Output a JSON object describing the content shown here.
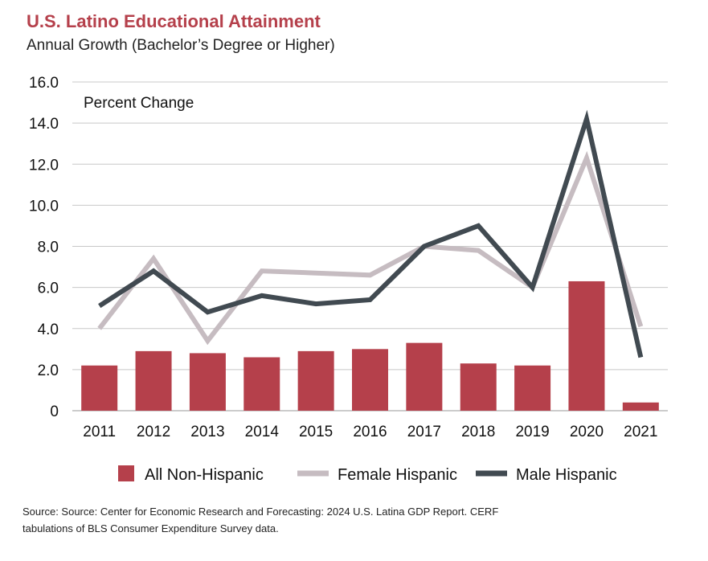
{
  "header": {
    "title": "U.S. Latino Educational Attainment",
    "subtitle": "Annual Growth (Bachelor’s Degree or Higher)"
  },
  "source_note": {
    "line1": "Source: Source: Center for Economic Research and Forecasting: 2024 U.S. Latina GDP Report. CERF",
    "line2": "tabulations of BLS Consumer Expenditure Survey data."
  },
  "colors": {
    "bar": "#b5404b",
    "female": "#c6bcc1",
    "male": "#414a51",
    "grid": "#c8c8c8"
  },
  "chart_data": {
    "type": "bar",
    "title": "U.S. Latino Educational Attainment",
    "subtitle": "Annual Growth (Bachelor’s Degree or Higher)",
    "ylabel": "Percent Change",
    "ylim": [
      0,
      16
    ],
    "yticks": [
      "0",
      "2.0",
      "4.0",
      "6.0",
      "8.0",
      "10.0",
      "12.0",
      "14.0",
      "16.0"
    ],
    "grid": true,
    "legend_position": "bottom",
    "categories": [
      "2011",
      "2012",
      "2013",
      "2014",
      "2015",
      "2016",
      "2017",
      "2018",
      "2019",
      "2020",
      "2021"
    ],
    "series": [
      {
        "name": "All Non-Hispanic",
        "type": "bar",
        "values": [
          2.2,
          2.9,
          2.8,
          2.6,
          2.9,
          3.0,
          3.3,
          2.3,
          2.2,
          6.3,
          0.4
        ]
      },
      {
        "name": "Female Hispanic",
        "type": "line",
        "values": [
          4.0,
          7.4,
          3.4,
          6.8,
          6.7,
          6.6,
          8.0,
          7.8,
          6.0,
          12.3,
          4.1
        ]
      },
      {
        "name": "Male Hispanic",
        "type": "line",
        "values": [
          5.1,
          6.8,
          4.8,
          5.6,
          5.2,
          5.4,
          8.0,
          9.0,
          6.0,
          14.2,
          2.6
        ]
      }
    ]
  }
}
